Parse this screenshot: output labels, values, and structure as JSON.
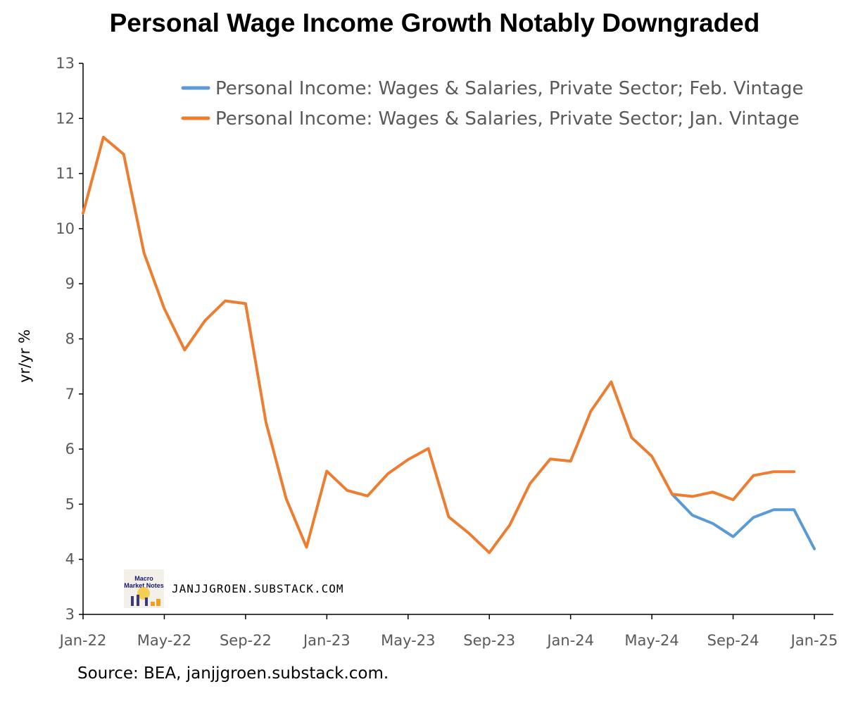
{
  "chart_data": {
    "type": "line",
    "title": "Personal Wage Income Growth Notably Downgraded",
    "ylabel": "yr/yr %",
    "xlabel": "",
    "ylim": [
      3,
      13
    ],
    "yticks": [
      "3",
      "4",
      "5",
      "6",
      "7",
      "8",
      "9",
      "10",
      "11",
      "12",
      "13"
    ],
    "xticks": [
      "Jan-22",
      "May-22",
      "Sep-22",
      "Jan-23",
      "May-23",
      "Sep-23",
      "Jan-24",
      "May-24",
      "Sep-24",
      "Jan-25"
    ],
    "x": [
      "Jan-22",
      "Feb-22",
      "Mar-22",
      "Apr-22",
      "May-22",
      "Jun-22",
      "Jul-22",
      "Aug-22",
      "Sep-22",
      "Oct-22",
      "Nov-22",
      "Dec-22",
      "Jan-23",
      "Feb-23",
      "Mar-23",
      "Apr-23",
      "May-23",
      "Jun-23",
      "Jul-23",
      "Aug-23",
      "Sep-23",
      "Oct-23",
      "Nov-23",
      "Dec-23",
      "Jan-24",
      "Feb-24",
      "Mar-24",
      "Apr-24",
      "May-24",
      "Jun-24",
      "Jul-24",
      "Aug-24",
      "Sep-24",
      "Oct-24",
      "Nov-24",
      "Dec-24",
      "Jan-25"
    ],
    "legend_position": "top-right",
    "grid": false,
    "series": [
      {
        "name": "Personal Income: Wages & Salaries, Private Sector; Feb. Vintage",
        "color": "#5b9bd5",
        "values": [
          null,
          null,
          null,
          null,
          null,
          null,
          null,
          null,
          null,
          null,
          null,
          null,
          null,
          null,
          null,
          null,
          null,
          null,
          null,
          null,
          null,
          null,
          null,
          null,
          null,
          null,
          null,
          null,
          null,
          5.18,
          4.8,
          4.65,
          4.41,
          4.76,
          4.9,
          4.9,
          4.19
        ]
      },
      {
        "name": "Personal Income: Wages & Salaries, Private Sector; Jan. Vintage",
        "color": "#ed7d31",
        "values": [
          10.28,
          11.66,
          11.35,
          9.56,
          8.55,
          7.8,
          8.33,
          8.69,
          8.64,
          6.49,
          5.1,
          4.22,
          5.6,
          5.25,
          5.15,
          5.55,
          5.81,
          6.01,
          4.77,
          4.47,
          4.12,
          4.62,
          5.37,
          5.82,
          5.78,
          6.69,
          7.22,
          6.21,
          5.87,
          5.18,
          5.14,
          5.22,
          5.08,
          5.52,
          5.59,
          5.59,
          null
        ]
      }
    ]
  },
  "source_note": "Source: BEA, janjjgroen.substack.com.",
  "watermark": {
    "text": "JANJJGROEN.SUBSTACK.COM",
    "logo_text": "Macro Market Notes",
    "logo_icon": "macro-market-notes-logo"
  }
}
